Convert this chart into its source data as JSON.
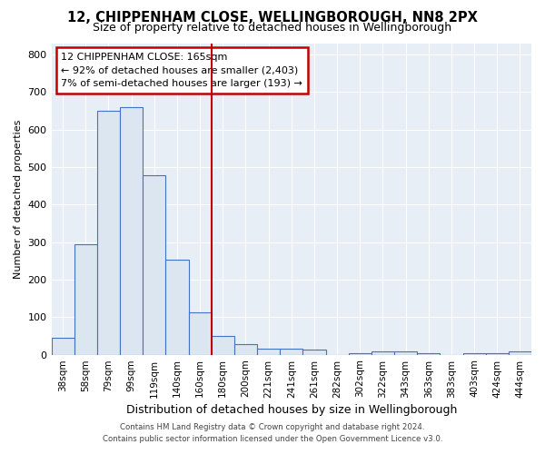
{
  "title": "12, CHIPPENHAM CLOSE, WELLINGBOROUGH, NN8 2PX",
  "subtitle": "Size of property relative to detached houses in Wellingborough",
  "xlabel": "Distribution of detached houses by size in Wellingborough",
  "ylabel": "Number of detached properties",
  "categories": [
    "38sqm",
    "58sqm",
    "79sqm",
    "99sqm",
    "119sqm",
    "140sqm",
    "160sqm",
    "180sqm",
    "200sqm",
    "221sqm",
    "241sqm",
    "261sqm",
    "282sqm",
    "302sqm",
    "322sqm",
    "343sqm",
    "363sqm",
    "383sqm",
    "403sqm",
    "424sqm",
    "444sqm"
  ],
  "values": [
    45,
    293,
    650,
    660,
    478,
    253,
    113,
    50,
    28,
    15,
    15,
    13,
    0,
    5,
    8,
    8,
    5,
    0,
    5,
    3,
    8
  ],
  "bar_color": "#dce6f1",
  "bar_edge_color": "#4472c4",
  "highlight_label": "12 CHIPPENHAM CLOSE: 165sqm",
  "annotation_line1": "← 92% of detached houses are smaller (2,403)",
  "annotation_line2": "7% of semi-detached houses are larger (193) →",
  "vline_color": "#c00000",
  "ylim": [
    0,
    830
  ],
  "yticks": [
    0,
    100,
    200,
    300,
    400,
    500,
    600,
    700,
    800
  ],
  "footer1": "Contains HM Land Registry data © Crown copyright and database right 2024.",
  "footer2": "Contains public sector information licensed under the Open Government Licence v3.0.",
  "bg_color": "#e8eef5",
  "title_fontsize": 10.5,
  "subtitle_fontsize": 9,
  "xlabel_fontsize": 9,
  "ylabel_fontsize": 8,
  "bar_width": 1.0,
  "vline_x": 6.5
}
